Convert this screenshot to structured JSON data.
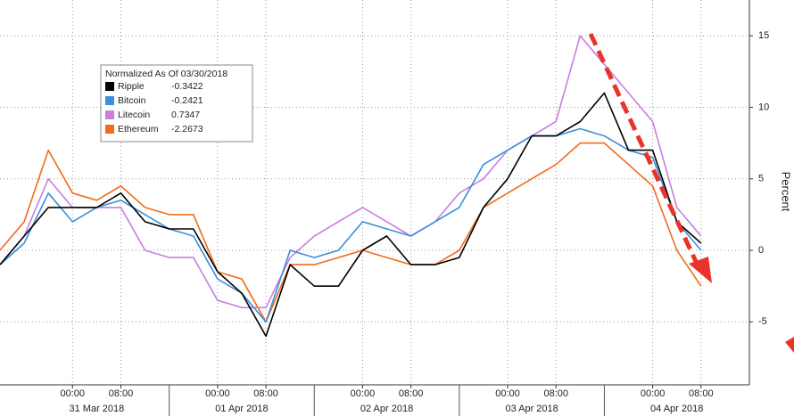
{
  "chart_data": {
    "type": "line",
    "y_axis_label": "Percent",
    "legend_title": "Normalized As Of 03/30/2018",
    "x": [
      "2018-03-30 12:00",
      "2018-03-30 16:00",
      "2018-03-30 20:00",
      "2018-03-31 00:00",
      "2018-03-31 04:00",
      "2018-03-31 08:00",
      "2018-03-31 12:00",
      "2018-03-31 16:00",
      "2018-03-31 20:00",
      "2018-04-01 00:00",
      "2018-04-01 04:00",
      "2018-04-01 08:00",
      "2018-04-01 12:00",
      "2018-04-01 16:00",
      "2018-04-01 20:00",
      "2018-04-02 00:00",
      "2018-04-02 04:00",
      "2018-04-02 08:00",
      "2018-04-02 12:00",
      "2018-04-02 16:00",
      "2018-04-02 20:00",
      "2018-04-03 00:00",
      "2018-04-03 04:00",
      "2018-04-03 08:00",
      "2018-04-03 12:00",
      "2018-04-03 16:00",
      "2018-04-03 20:00",
      "2018-04-04 00:00",
      "2018-04-04 04:00",
      "2018-04-04 08:00"
    ],
    "series": [
      {
        "name": "Ripple",
        "legend_value": -0.3422,
        "color": "#000000",
        "values": [
          -1,
          1,
          3,
          3,
          3,
          4,
          2,
          1.5,
          1.5,
          -1.5,
          -3,
          -6,
          -1,
          -2.5,
          -2.5,
          0,
          1,
          -1,
          -1,
          -0.5,
          3,
          5,
          8,
          8,
          9,
          11,
          7,
          7,
          2,
          0.5
        ]
      },
      {
        "name": "Bitcoin",
        "legend_value": -0.2421,
        "color": "#3a8fd9",
        "values": [
          -1,
          0.5,
          4,
          2,
          3,
          3.5,
          2.5,
          1.5,
          1,
          -2,
          -3,
          -5,
          0,
          -0.5,
          0,
          2,
          1.5,
          1,
          2,
          3,
          6,
          7,
          8,
          8,
          8.5,
          8,
          7,
          6.5,
          2,
          0
        ]
      },
      {
        "name": "Litecoin",
        "legend_value": 0.7347,
        "color": "#c77fe0",
        "values": [
          -1,
          1,
          5,
          3,
          3,
          3,
          0,
          -0.5,
          -0.5,
          -3.5,
          -4,
          -4,
          -0.5,
          1,
          2,
          3,
          2,
          1,
          2,
          4,
          5,
          7,
          8,
          9,
          15,
          13,
          11,
          9,
          3,
          1
        ]
      },
      {
        "name": "Ethereum",
        "legend_value": -2.2673,
        "color": "#f26a1b",
        "values": [
          0,
          2,
          7,
          4,
          3.5,
          4.5,
          3,
          2.5,
          2.5,
          -1.5,
          -2,
          -5,
          -1,
          -1,
          -0.5,
          0,
          -0.5,
          -1,
          -1,
          0,
          3,
          4,
          5,
          6,
          7.5,
          7.5,
          6,
          4.5,
          0,
          -2.5
        ]
      }
    ],
    "xlim": [
      "2018-03-30 12:00",
      "2018-04-04 16:00"
    ],
    "xticks": [
      {
        "value": "2018-03-31 00:00",
        "label": "00:00"
      },
      {
        "value": "2018-03-31 08:00",
        "label": "08:00"
      },
      {
        "value": "2018-04-01 00:00",
        "label": "00:00"
      },
      {
        "value": "2018-04-01 08:00",
        "label": "08:00"
      },
      {
        "value": "2018-04-02 00:00",
        "label": "00:00"
      },
      {
        "value": "2018-04-02 08:00",
        "label": "08:00"
      },
      {
        "value": "2018-04-03 00:00",
        "label": "00:00"
      },
      {
        "value": "2018-04-03 08:00",
        "label": "08:00"
      },
      {
        "value": "2018-04-04 00:00",
        "label": "00:00"
      },
      {
        "value": "2018-04-04 08:00",
        "label": "08:00"
      }
    ],
    "day_labels": [
      "31 Mar 2018",
      "01 Apr 2018",
      "02 Apr 2018",
      "03 Apr 2018",
      "04 Apr 2018"
    ],
    "ylim": [
      -9.4,
      17.5
    ],
    "yticks": [
      -5,
      0,
      5,
      10,
      15
    ],
    "grid": true
  }
}
